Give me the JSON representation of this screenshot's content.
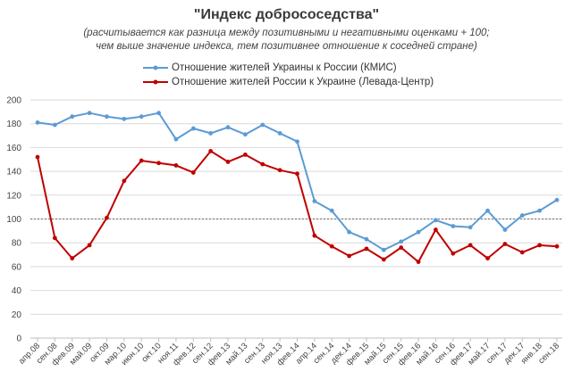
{
  "chart_data": {
    "type": "line",
    "title": "\"Индекс добрососедства\"",
    "subtitle": [
      "(расчитывается как разница между позитивными и негативными оценками + 100;",
      "чем выше значение индекса, тем позитивнее отношение к соседней стране)"
    ],
    "categories": [
      "апр.08",
      "сен.08",
      "фев.09",
      "май.09",
      "окт.09",
      "мар.10",
      "июн.10",
      "окт.10",
      "ноя.11",
      "фев.12",
      "сен.12",
      "фев.13",
      "май.13",
      "сен.13",
      "ноя.13",
      "фев.14",
      "апр.14",
      "сен.14",
      "дек.14",
      "фев.15",
      "май.15",
      "сен.15",
      "фев.16",
      "май.16",
      "сен.16",
      "фев.17",
      "май.17",
      "сен.17",
      "дек.17",
      "янв.18",
      "сен.18"
    ],
    "series": [
      {
        "name": "Отношение жителей Украины к России (КМИС)",
        "color": "#5b9bd5",
        "values": [
          181,
          179,
          186,
          189,
          186,
          184,
          186,
          189,
          167,
          176,
          172,
          177,
          171,
          179,
          172,
          165,
          115,
          107,
          89,
          83,
          74,
          81,
          89,
          99,
          94,
          93,
          107,
          91,
          103,
          107,
          116
        ]
      },
      {
        "name": "Отношение жителей России к Украине (Левада-Центр)",
        "color": "#c00000",
        "values": [
          152,
          84,
          67,
          78,
          101,
          132,
          149,
          147,
          145,
          139,
          157,
          148,
          154,
          146,
          141,
          138,
          86,
          77,
          69,
          75,
          66,
          76,
          64,
          91,
          71,
          78,
          67,
          79,
          72,
          78,
          77
        ]
      }
    ],
    "reference_line": {
      "value": 100,
      "style": "dotted",
      "color": "#7f7f7f"
    },
    "ylim": [
      0,
      200
    ],
    "yticks": [
      0,
      20,
      40,
      60,
      80,
      100,
      120,
      140,
      160,
      180,
      200
    ],
    "grid": true,
    "legend_position": "top"
  }
}
